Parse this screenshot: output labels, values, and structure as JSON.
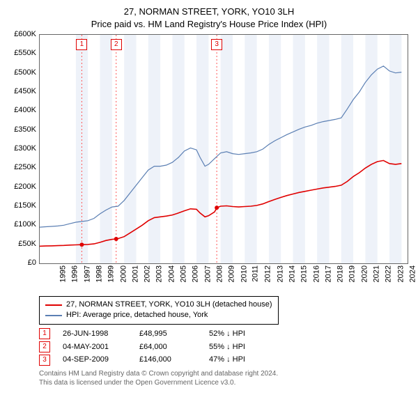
{
  "title_line1": "27, NORMAN STREET, YORK, YO10 3LH",
  "title_line2": "Price paid vs. HM Land Registry's House Price Index (HPI)",
  "chart": {
    "type": "line",
    "x_min": 1995,
    "x_max": 2025.5,
    "y_min": 0,
    "y_max": 600000,
    "y_ticks": [
      0,
      50000,
      100000,
      150000,
      200000,
      250000,
      300000,
      350000,
      400000,
      450000,
      500000,
      550000,
      600000
    ],
    "y_tick_labels": [
      "£0",
      "£50K",
      "£100K",
      "£150K",
      "£200K",
      "£250K",
      "£300K",
      "£350K",
      "£400K",
      "£450K",
      "£500K",
      "£550K",
      "£600K"
    ],
    "x_ticks": [
      1995,
      1996,
      1997,
      1998,
      1999,
      2000,
      2001,
      2002,
      2003,
      2004,
      2005,
      2006,
      2007,
      2008,
      2009,
      2010,
      2011,
      2012,
      2013,
      2014,
      2015,
      2016,
      2017,
      2018,
      2019,
      2020,
      2021,
      2022,
      2023,
      2024,
      2025
    ],
    "x_tick_labels": [
      "1995",
      "1996",
      "1997",
      "1998",
      "1999",
      "2000",
      "2001",
      "2002",
      "2003",
      "2004",
      "2005",
      "2006",
      "2007",
      "2008",
      "2009",
      "2010",
      "2011",
      "2012",
      "2013",
      "2014",
      "2015",
      "2016",
      "2017",
      "2018",
      "2019",
      "2020",
      "2021",
      "2022",
      "2023",
      "2024",
      "2025"
    ],
    "plot_bg": "#ffffff",
    "border_color": "#666666",
    "band_color": "#eef2f9",
    "band_years": [
      1998,
      2000,
      2002,
      2004,
      2006,
      2008,
      2010,
      2012,
      2014,
      2016,
      2018,
      2020,
      2022,
      2024
    ],
    "marker_line_color": "#ff5555",
    "label_fontsize": 11,
    "title_fontsize": 13,
    "series_hpi": {
      "label": "HPI: Average price, detached house, York",
      "color": "#5b7fb3",
      "width": 1.2,
      "points": [
        [
          1995.0,
          95000
        ],
        [
          1995.5,
          96000
        ],
        [
          1996.0,
          97000
        ],
        [
          1996.5,
          98000
        ],
        [
          1997.0,
          100000
        ],
        [
          1997.5,
          104000
        ],
        [
          1998.0,
          108000
        ],
        [
          1998.5,
          110000
        ],
        [
          1999.0,
          112000
        ],
        [
          1999.5,
          118000
        ],
        [
          2000.0,
          130000
        ],
        [
          2000.5,
          140000
        ],
        [
          2001.0,
          148000
        ],
        [
          2001.5,
          150000
        ],
        [
          2002.0,
          165000
        ],
        [
          2002.5,
          185000
        ],
        [
          2003.0,
          205000
        ],
        [
          2003.5,
          225000
        ],
        [
          2004.0,
          245000
        ],
        [
          2004.5,
          255000
        ],
        [
          2005.0,
          255000
        ],
        [
          2005.5,
          258000
        ],
        [
          2006.0,
          265000
        ],
        [
          2006.5,
          278000
        ],
        [
          2007.0,
          295000
        ],
        [
          2007.5,
          303000
        ],
        [
          2008.0,
          298000
        ],
        [
          2008.3,
          278000
        ],
        [
          2008.7,
          255000
        ],
        [
          2009.0,
          260000
        ],
        [
          2009.5,
          275000
        ],
        [
          2010.0,
          290000
        ],
        [
          2010.5,
          293000
        ],
        [
          2011.0,
          288000
        ],
        [
          2011.5,
          286000
        ],
        [
          2012.0,
          288000
        ],
        [
          2012.5,
          290000
        ],
        [
          2013.0,
          293000
        ],
        [
          2013.5,
          300000
        ],
        [
          2014.0,
          312000
        ],
        [
          2014.5,
          322000
        ],
        [
          2015.0,
          330000
        ],
        [
          2015.5,
          338000
        ],
        [
          2016.0,
          345000
        ],
        [
          2016.5,
          352000
        ],
        [
          2017.0,
          358000
        ],
        [
          2017.5,
          362000
        ],
        [
          2018.0,
          368000
        ],
        [
          2018.5,
          372000
        ],
        [
          2019.0,
          375000
        ],
        [
          2019.5,
          378000
        ],
        [
          2020.0,
          382000
        ],
        [
          2020.5,
          405000
        ],
        [
          2021.0,
          430000
        ],
        [
          2021.5,
          450000
        ],
        [
          2022.0,
          475000
        ],
        [
          2022.5,
          495000
        ],
        [
          2023.0,
          510000
        ],
        [
          2023.5,
          518000
        ],
        [
          2024.0,
          505000
        ],
        [
          2024.5,
          500000
        ],
        [
          2025.0,
          502000
        ]
      ]
    },
    "series_property": {
      "label": "27, NORMAN STREET, YORK, YO10 3LH (detached house)",
      "color": "#e00000",
      "width": 1.6,
      "points": [
        [
          1995.0,
          45000
        ],
        [
          1995.5,
          45500
        ],
        [
          1996.0,
          46000
        ],
        [
          1996.5,
          46500
        ],
        [
          1997.0,
          47000
        ],
        [
          1997.5,
          48000
        ],
        [
          1998.0,
          48500
        ],
        [
          1998.5,
          48995
        ],
        [
          1999.0,
          49500
        ],
        [
          1999.5,
          51000
        ],
        [
          2000.0,
          55000
        ],
        [
          2000.5,
          60000
        ],
        [
          2001.0,
          63000
        ],
        [
          2001.34,
          64000
        ],
        [
          2001.5,
          65000
        ],
        [
          2002.0,
          70000
        ],
        [
          2002.5,
          80000
        ],
        [
          2003.0,
          90000
        ],
        [
          2003.5,
          100000
        ],
        [
          2004.0,
          112000
        ],
        [
          2004.5,
          120000
        ],
        [
          2005.0,
          122000
        ],
        [
          2005.5,
          124000
        ],
        [
          2006.0,
          127000
        ],
        [
          2006.5,
          132000
        ],
        [
          2007.0,
          138000
        ],
        [
          2007.5,
          143000
        ],
        [
          2008.0,
          142000
        ],
        [
          2008.3,
          132000
        ],
        [
          2008.7,
          122000
        ],
        [
          2009.0,
          125000
        ],
        [
          2009.5,
          135000
        ],
        [
          2009.68,
          146000
        ],
        [
          2010.0,
          150000
        ],
        [
          2010.5,
          151000
        ],
        [
          2011.0,
          149000
        ],
        [
          2011.5,
          148000
        ],
        [
          2012.0,
          149000
        ],
        [
          2012.5,
          150000
        ],
        [
          2013.0,
          152000
        ],
        [
          2013.5,
          156000
        ],
        [
          2014.0,
          162000
        ],
        [
          2014.5,
          168000
        ],
        [
          2015.0,
          173000
        ],
        [
          2015.5,
          178000
        ],
        [
          2016.0,
          182000
        ],
        [
          2016.5,
          186000
        ],
        [
          2017.0,
          189000
        ],
        [
          2017.5,
          192000
        ],
        [
          2018.0,
          195000
        ],
        [
          2018.5,
          198000
        ],
        [
          2019.0,
          200000
        ],
        [
          2019.5,
          202000
        ],
        [
          2020.0,
          205000
        ],
        [
          2020.5,
          215000
        ],
        [
          2021.0,
          228000
        ],
        [
          2021.5,
          238000
        ],
        [
          2022.0,
          250000
        ],
        [
          2022.5,
          260000
        ],
        [
          2023.0,
          267000
        ],
        [
          2023.5,
          270000
        ],
        [
          2024.0,
          262000
        ],
        [
          2024.5,
          260000
        ],
        [
          2025.0,
          262000
        ]
      ]
    },
    "sale_markers": [
      {
        "n": "1",
        "x": 1998.49,
        "y": 48995
      },
      {
        "n": "2",
        "x": 2001.34,
        "y": 64000
      },
      {
        "n": "3",
        "x": 2009.68,
        "y": 146000
      }
    ]
  },
  "legend": {
    "rows": [
      {
        "color": "#e00000",
        "label": "27, NORMAN STREET, YORK, YO10 3LH (detached house)"
      },
      {
        "color": "#5b7fb3",
        "label": "HPI: Average price, detached house, York"
      }
    ]
  },
  "markers_table": [
    {
      "n": "1",
      "color": "#e00000",
      "date": "26-JUN-1998",
      "price": "£48,995",
      "pct": "52% ↓ HPI"
    },
    {
      "n": "2",
      "color": "#e00000",
      "date": "04-MAY-2001",
      "price": "£64,000",
      "pct": "55% ↓ HPI"
    },
    {
      "n": "3",
      "color": "#e00000",
      "date": "04-SEP-2009",
      "price": "£146,000",
      "pct": "47% ↓ HPI"
    }
  ],
  "footnote_line1": "Contains HM Land Registry data © Crown copyright and database right 2024.",
  "footnote_line2": "This data is licensed under the Open Government Licence v3.0."
}
